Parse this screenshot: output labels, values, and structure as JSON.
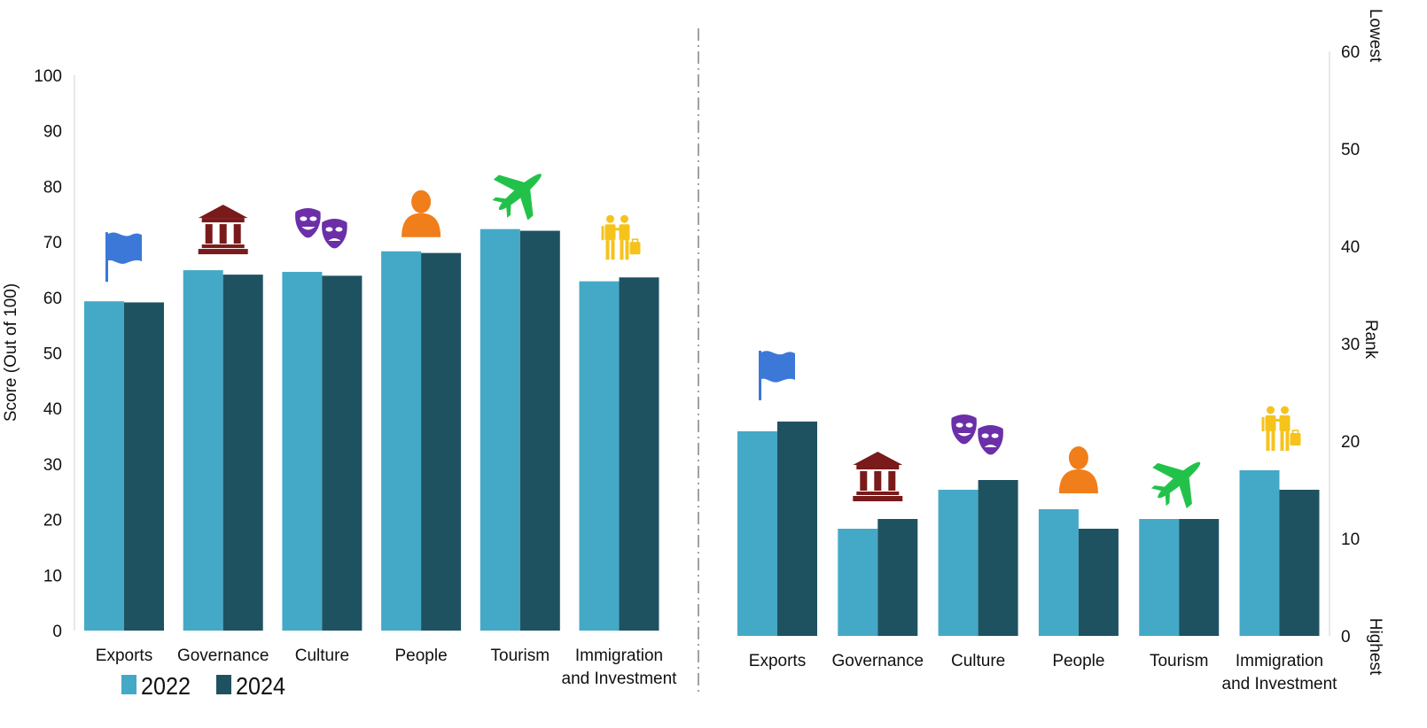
{
  "colors": {
    "s2022": "#44A9C6",
    "s2024": "#1F5261",
    "flag": "#3B78D8",
    "governance": "#7A1A1A",
    "culture": "#6B2FA8",
    "people": "#F07E1A",
    "tourism": "#22C24A",
    "immigration": "#F5C31C"
  },
  "legend": [
    {
      "label": "2022",
      "color_key": "s2022"
    },
    {
      "label": "2024",
      "color_key": "s2024"
    }
  ],
  "chart_data": [
    {
      "type": "bar",
      "title": "",
      "ylabel": "Score (Out of 100)",
      "xlabel": "",
      "ylim": [
        0,
        100
      ],
      "yticks": [
        "0",
        "10",
        "20",
        "30",
        "40",
        "50",
        "60",
        "70",
        "80",
        "90",
        "100"
      ],
      "categories": [
        {
          "lines": [
            "Exports"
          ],
          "icon": "flag-icon"
        },
        {
          "lines": [
            "Governance"
          ],
          "icon": "government-building-icon"
        },
        {
          "lines": [
            "Culture"
          ],
          "icon": "theater-masks-icon"
        },
        {
          "lines": [
            "People"
          ],
          "icon": "person-icon"
        },
        {
          "lines": [
            "Tourism"
          ],
          "icon": "airplane-icon"
        },
        {
          "lines": [
            "Immigration",
            "and Investment"
          ],
          "icon": "family-luggage-icon"
        }
      ],
      "series": [
        {
          "name": "2022",
          "values": [
            59.3,
            64.9,
            64.6,
            68.3,
            72.3,
            62.9
          ]
        },
        {
          "name": "2024",
          "values": [
            59.1,
            64.1,
            63.9,
            68.0,
            72.0,
            63.6
          ]
        }
      ]
    },
    {
      "type": "bar",
      "title": "",
      "ylabel": "Rank",
      "ylabel_top": "Lowest",
      "ylabel_bottom": "Highest",
      "ylim": [
        0,
        60
      ],
      "yticks": [
        "0",
        "10",
        "20",
        "30",
        "40",
        "50",
        "60"
      ],
      "categories": [
        {
          "lines": [
            "Exports"
          ],
          "icon": "flag-icon"
        },
        {
          "lines": [
            "Governance"
          ],
          "icon": "government-building-icon"
        },
        {
          "lines": [
            "Culture"
          ],
          "icon": "theater-masks-icon"
        },
        {
          "lines": [
            "People"
          ],
          "icon": "person-icon"
        },
        {
          "lines": [
            "Tourism"
          ],
          "icon": "airplane-icon"
        },
        {
          "lines": [
            "Immigration",
            "and Investment"
          ],
          "icon": "family-luggage-icon"
        }
      ],
      "series": [
        {
          "name": "2022",
          "values": [
            21,
            11,
            15,
            13,
            12,
            17
          ]
        },
        {
          "name": "2024",
          "values": [
            22,
            12,
            16,
            11,
            12,
            15
          ]
        }
      ]
    }
  ]
}
